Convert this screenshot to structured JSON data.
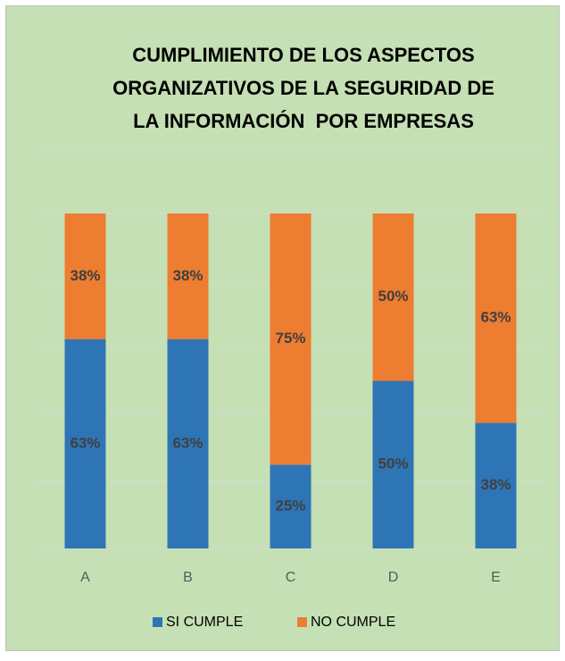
{
  "chart_data": {
    "type": "stacked_bar",
    "title": [
      "CUMPLIMIENTO DE LOS ASPECTOS",
      "ORGANIZATIVOS DE LA SEGURIDAD DE",
      "LA INFORMACIÓN  POR EMPRESAS"
    ],
    "categories": [
      "A",
      "B",
      "C",
      "D",
      "E"
    ],
    "series": [
      {
        "name": "SI CUMPLE",
        "color": "#2e75b6",
        "values": [
          62.5,
          62.5,
          25,
          50,
          37.5
        ],
        "value_labels": [
          "63%",
          "63%",
          "25%",
          "50%",
          "38%"
        ]
      },
      {
        "name": "NO CUMPLE",
        "color": "#ed7d31",
        "values": [
          37.5,
          37.5,
          75,
          50,
          62.5
        ],
        "value_labels": [
          "38%",
          "38%",
          "75%",
          "50%",
          "63%"
        ]
      }
    ],
    "ylim": [
      0,
      120
    ],
    "yticks": [
      0,
      20,
      40,
      60,
      80,
      100,
      120
    ],
    "grid": true,
    "legend": "bottom"
  }
}
